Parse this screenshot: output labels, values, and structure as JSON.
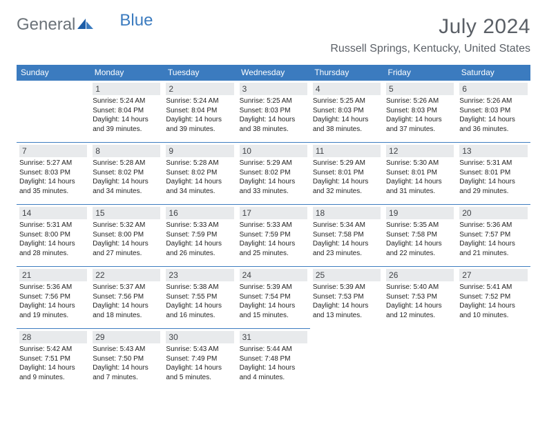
{
  "brand": {
    "part1": "General",
    "part2": "Blue"
  },
  "title": "July 2024",
  "location": "Russell Springs, Kentucky, United States",
  "colors": {
    "header_bg": "#3b7bbf",
    "daynum_bg": "#e8eaec",
    "border": "#3b7bbf",
    "title_color": "#5a5f66"
  },
  "typography": {
    "title_fontsize": 30,
    "location_fontsize": 16,
    "dayhead_fontsize": 12,
    "cell_fontsize": 10
  },
  "dayHeaders": [
    "Sunday",
    "Monday",
    "Tuesday",
    "Wednesday",
    "Thursday",
    "Friday",
    "Saturday"
  ],
  "weeks": [
    [
      null,
      {
        "n": "1",
        "sr": "Sunrise: 5:24 AM",
        "ss": "Sunset: 8:04 PM",
        "d1": "Daylight: 14 hours",
        "d2": "and 39 minutes."
      },
      {
        "n": "2",
        "sr": "Sunrise: 5:24 AM",
        "ss": "Sunset: 8:04 PM",
        "d1": "Daylight: 14 hours",
        "d2": "and 39 minutes."
      },
      {
        "n": "3",
        "sr": "Sunrise: 5:25 AM",
        "ss": "Sunset: 8:03 PM",
        "d1": "Daylight: 14 hours",
        "d2": "and 38 minutes."
      },
      {
        "n": "4",
        "sr": "Sunrise: 5:25 AM",
        "ss": "Sunset: 8:03 PM",
        "d1": "Daylight: 14 hours",
        "d2": "and 38 minutes."
      },
      {
        "n": "5",
        "sr": "Sunrise: 5:26 AM",
        "ss": "Sunset: 8:03 PM",
        "d1": "Daylight: 14 hours",
        "d2": "and 37 minutes."
      },
      {
        "n": "6",
        "sr": "Sunrise: 5:26 AM",
        "ss": "Sunset: 8:03 PM",
        "d1": "Daylight: 14 hours",
        "d2": "and 36 minutes."
      }
    ],
    [
      {
        "n": "7",
        "sr": "Sunrise: 5:27 AM",
        "ss": "Sunset: 8:03 PM",
        "d1": "Daylight: 14 hours",
        "d2": "and 35 minutes."
      },
      {
        "n": "8",
        "sr": "Sunrise: 5:28 AM",
        "ss": "Sunset: 8:02 PM",
        "d1": "Daylight: 14 hours",
        "d2": "and 34 minutes."
      },
      {
        "n": "9",
        "sr": "Sunrise: 5:28 AM",
        "ss": "Sunset: 8:02 PM",
        "d1": "Daylight: 14 hours",
        "d2": "and 34 minutes."
      },
      {
        "n": "10",
        "sr": "Sunrise: 5:29 AM",
        "ss": "Sunset: 8:02 PM",
        "d1": "Daylight: 14 hours",
        "d2": "and 33 minutes."
      },
      {
        "n": "11",
        "sr": "Sunrise: 5:29 AM",
        "ss": "Sunset: 8:01 PM",
        "d1": "Daylight: 14 hours",
        "d2": "and 32 minutes."
      },
      {
        "n": "12",
        "sr": "Sunrise: 5:30 AM",
        "ss": "Sunset: 8:01 PM",
        "d1": "Daylight: 14 hours",
        "d2": "and 31 minutes."
      },
      {
        "n": "13",
        "sr": "Sunrise: 5:31 AM",
        "ss": "Sunset: 8:01 PM",
        "d1": "Daylight: 14 hours",
        "d2": "and 29 minutes."
      }
    ],
    [
      {
        "n": "14",
        "sr": "Sunrise: 5:31 AM",
        "ss": "Sunset: 8:00 PM",
        "d1": "Daylight: 14 hours",
        "d2": "and 28 minutes."
      },
      {
        "n": "15",
        "sr": "Sunrise: 5:32 AM",
        "ss": "Sunset: 8:00 PM",
        "d1": "Daylight: 14 hours",
        "d2": "and 27 minutes."
      },
      {
        "n": "16",
        "sr": "Sunrise: 5:33 AM",
        "ss": "Sunset: 7:59 PM",
        "d1": "Daylight: 14 hours",
        "d2": "and 26 minutes."
      },
      {
        "n": "17",
        "sr": "Sunrise: 5:33 AM",
        "ss": "Sunset: 7:59 PM",
        "d1": "Daylight: 14 hours",
        "d2": "and 25 minutes."
      },
      {
        "n": "18",
        "sr": "Sunrise: 5:34 AM",
        "ss": "Sunset: 7:58 PM",
        "d1": "Daylight: 14 hours",
        "d2": "and 23 minutes."
      },
      {
        "n": "19",
        "sr": "Sunrise: 5:35 AM",
        "ss": "Sunset: 7:58 PM",
        "d1": "Daylight: 14 hours",
        "d2": "and 22 minutes."
      },
      {
        "n": "20",
        "sr": "Sunrise: 5:36 AM",
        "ss": "Sunset: 7:57 PM",
        "d1": "Daylight: 14 hours",
        "d2": "and 21 minutes."
      }
    ],
    [
      {
        "n": "21",
        "sr": "Sunrise: 5:36 AM",
        "ss": "Sunset: 7:56 PM",
        "d1": "Daylight: 14 hours",
        "d2": "and 19 minutes."
      },
      {
        "n": "22",
        "sr": "Sunrise: 5:37 AM",
        "ss": "Sunset: 7:56 PM",
        "d1": "Daylight: 14 hours",
        "d2": "and 18 minutes."
      },
      {
        "n": "23",
        "sr": "Sunrise: 5:38 AM",
        "ss": "Sunset: 7:55 PM",
        "d1": "Daylight: 14 hours",
        "d2": "and 16 minutes."
      },
      {
        "n": "24",
        "sr": "Sunrise: 5:39 AM",
        "ss": "Sunset: 7:54 PM",
        "d1": "Daylight: 14 hours",
        "d2": "and 15 minutes."
      },
      {
        "n": "25",
        "sr": "Sunrise: 5:39 AM",
        "ss": "Sunset: 7:53 PM",
        "d1": "Daylight: 14 hours",
        "d2": "and 13 minutes."
      },
      {
        "n": "26",
        "sr": "Sunrise: 5:40 AM",
        "ss": "Sunset: 7:53 PM",
        "d1": "Daylight: 14 hours",
        "d2": "and 12 minutes."
      },
      {
        "n": "27",
        "sr": "Sunrise: 5:41 AM",
        "ss": "Sunset: 7:52 PM",
        "d1": "Daylight: 14 hours",
        "d2": "and 10 minutes."
      }
    ],
    [
      {
        "n": "28",
        "sr": "Sunrise: 5:42 AM",
        "ss": "Sunset: 7:51 PM",
        "d1": "Daylight: 14 hours",
        "d2": "and 9 minutes."
      },
      {
        "n": "29",
        "sr": "Sunrise: 5:43 AM",
        "ss": "Sunset: 7:50 PM",
        "d1": "Daylight: 14 hours",
        "d2": "and 7 minutes."
      },
      {
        "n": "30",
        "sr": "Sunrise: 5:43 AM",
        "ss": "Sunset: 7:49 PM",
        "d1": "Daylight: 14 hours",
        "d2": "and 5 minutes."
      },
      {
        "n": "31",
        "sr": "Sunrise: 5:44 AM",
        "ss": "Sunset: 7:48 PM",
        "d1": "Daylight: 14 hours",
        "d2": "and 4 minutes."
      },
      null,
      null,
      null
    ]
  ]
}
